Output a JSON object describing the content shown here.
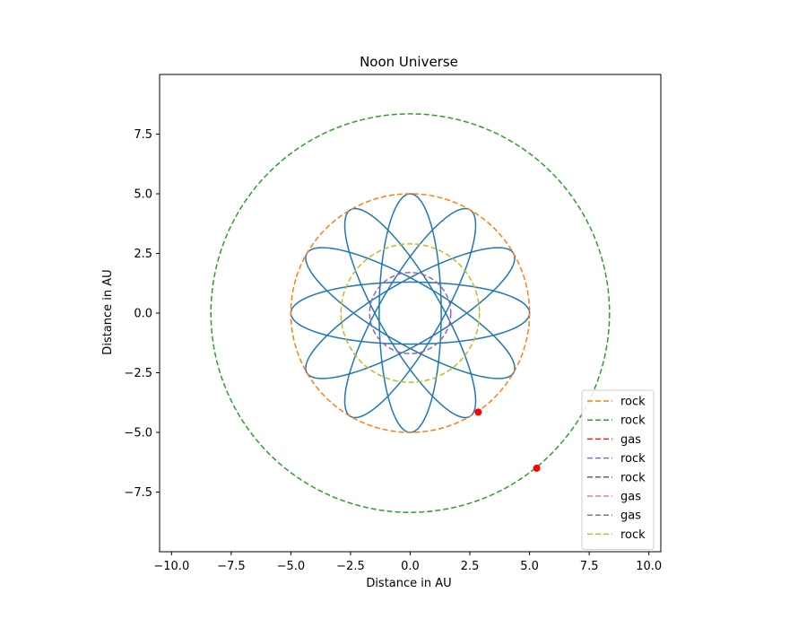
{
  "chart_data": {
    "type": "line",
    "title": "Noon Universe",
    "xlabel": "Distance in AU",
    "ylabel": "Distance in AU",
    "xlim": [
      -10.5,
      10.5
    ],
    "ylim": [
      -10.0,
      10.0
    ],
    "xticks": [
      -10.0,
      -7.5,
      -5.0,
      -2.5,
      0.0,
      2.5,
      5.0,
      7.5,
      10.0
    ],
    "xtick_labels": [
      "−10.0",
      "−7.5",
      "−5.0",
      "−2.5",
      "0.0",
      "2.5",
      "5.0",
      "7.5",
      "10.0"
    ],
    "yticks": [
      -7.5,
      -5.0,
      -2.5,
      0.0,
      2.5,
      5.0,
      7.5
    ],
    "ytick_labels": [
      "−7.5",
      "−5.0",
      "−2.5",
      "0.0",
      "2.5",
      "5.0",
      "7.5"
    ],
    "grid": false,
    "legend_position": "lower-right",
    "rosette": {
      "color": "#1f77b4",
      "petals": 6,
      "rotation_step_deg": 30,
      "semi_major": 5.0,
      "semi_minor": 1.3,
      "focus_offset": 2.0
    },
    "series": [
      {
        "name": "rock",
        "color": "#ff7f0e",
        "radius": 5.0,
        "dashed": true
      },
      {
        "name": "rock",
        "color": "#2ca02c",
        "radius": 8.35,
        "dashed": true
      },
      {
        "name": "gas",
        "color": "#d62728",
        "radius": 0,
        "dashed": true
      },
      {
        "name": "rock",
        "color": "#9467bd",
        "radius": 1.7,
        "dashed": true
      },
      {
        "name": "rock",
        "color": "#8c564b",
        "radius": 0,
        "dashed": true
      },
      {
        "name": "gas",
        "color": "#e377c2",
        "radius": 0,
        "dashed": true
      },
      {
        "name": "gas",
        "color": "#7f7f7f",
        "radius": 0,
        "dashed": true
      },
      {
        "name": "rock",
        "color": "#bcbd22",
        "radius": 2.9,
        "dashed": true
      }
    ],
    "markers": [
      {
        "x": 2.85,
        "y": -4.15,
        "color": "#ff0000"
      },
      {
        "x": 5.3,
        "y": -6.5,
        "color": "#ff0000"
      }
    ]
  }
}
